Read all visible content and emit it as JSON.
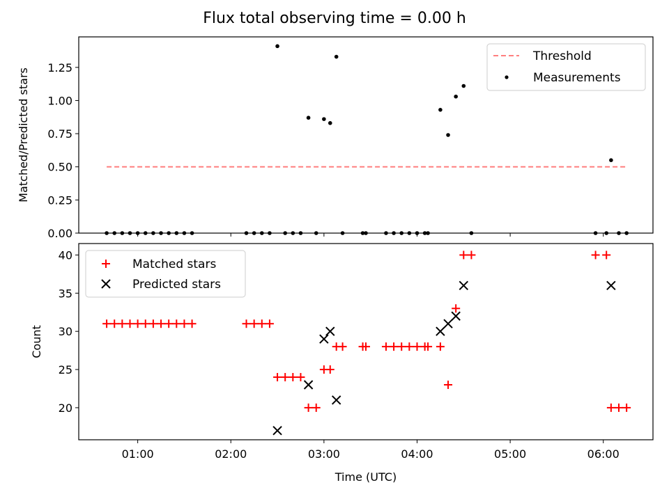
{
  "title": "Flux total observing time = 0.00 h",
  "chart_data": [
    {
      "type": "scatter",
      "ylabel": "Matched/Predicted stars",
      "ylim": [
        0,
        1.48
      ],
      "yticks": [
        "0.00",
        "0.25",
        "0.50",
        "0.75",
        "1.00",
        "1.25"
      ],
      "grid": false,
      "legend_position": "top-right",
      "threshold": {
        "name": "Threshold",
        "y": 0.5,
        "x_range": [
          "00:40",
          "06:15"
        ],
        "color": "#ff7f7f"
      },
      "measurements": {
        "name": "Measurements",
        "color": "#000000",
        "points": [
          [
            "00:40",
            0
          ],
          [
            "00:45",
            0
          ],
          [
            "00:50",
            0
          ],
          [
            "00:55",
            0
          ],
          [
            "01:00",
            0
          ],
          [
            "01:05",
            0
          ],
          [
            "01:10",
            0
          ],
          [
            "01:15",
            0
          ],
          [
            "01:20",
            0
          ],
          [
            "01:25",
            0
          ],
          [
            "01:30",
            0
          ],
          [
            "01:35",
            0
          ],
          [
            "02:10",
            0
          ],
          [
            "02:15",
            0
          ],
          [
            "02:20",
            0
          ],
          [
            "02:25",
            0
          ],
          [
            "02:30",
            1.41
          ],
          [
            "02:35",
            0
          ],
          [
            "02:40",
            0
          ],
          [
            "02:45",
            0
          ],
          [
            "02:50",
            0.87
          ],
          [
            "02:55",
            0
          ],
          [
            "03:00",
            0.86
          ],
          [
            "03:04",
            0.83
          ],
          [
            "03:08",
            1.33
          ],
          [
            "03:12",
            0
          ],
          [
            "03:25",
            0
          ],
          [
            "03:27",
            0
          ],
          [
            "03:40",
            0
          ],
          [
            "03:45",
            0
          ],
          [
            "03:50",
            0
          ],
          [
            "03:55",
            0
          ],
          [
            "04:00",
            0
          ],
          [
            "04:05",
            0
          ],
          [
            "04:07",
            0
          ],
          [
            "04:15",
            0.93
          ],
          [
            "04:20",
            0.74
          ],
          [
            "04:25",
            1.03
          ],
          [
            "04:30",
            1.11
          ],
          [
            "04:35",
            0
          ],
          [
            "05:55",
            0
          ],
          [
            "06:02",
            0
          ],
          [
            "06:05",
            0.55
          ],
          [
            "06:10",
            0
          ],
          [
            "06:15",
            0
          ]
        ]
      }
    },
    {
      "type": "scatter",
      "xlabel": "Time (UTC)",
      "ylabel": "Count",
      "ylim": [
        15.8,
        41.5
      ],
      "yticks": [
        "20",
        "25",
        "30",
        "35",
        "40"
      ],
      "xticks": [
        "01:00",
        "02:00",
        "03:00",
        "04:00",
        "05:00",
        "06:00"
      ],
      "xlim": [
        "00:22",
        "06:32"
      ],
      "grid": false,
      "legend_position": "top-left",
      "series": [
        {
          "name": "Matched stars",
          "marker": "+",
          "color": "#ff0000",
          "points": [
            [
              "00:40",
              31
            ],
            [
              "00:45",
              31
            ],
            [
              "00:50",
              31
            ],
            [
              "00:55",
              31
            ],
            [
              "01:00",
              31
            ],
            [
              "01:05",
              31
            ],
            [
              "01:10",
              31
            ],
            [
              "01:15",
              31
            ],
            [
              "01:20",
              31
            ],
            [
              "01:25",
              31
            ],
            [
              "01:30",
              31
            ],
            [
              "01:35",
              31
            ],
            [
              "02:10",
              31
            ],
            [
              "02:15",
              31
            ],
            [
              "02:20",
              31
            ],
            [
              "02:25",
              31
            ],
            [
              "02:30",
              24
            ],
            [
              "02:35",
              24
            ],
            [
              "02:40",
              24
            ],
            [
              "02:45",
              24
            ],
            [
              "02:50",
              20
            ],
            [
              "02:55",
              20
            ],
            [
              "03:00",
              25
            ],
            [
              "03:04",
              25
            ],
            [
              "03:08",
              28
            ],
            [
              "03:12",
              28
            ],
            [
              "03:25",
              28
            ],
            [
              "03:27",
              28
            ],
            [
              "03:40",
              28
            ],
            [
              "03:45",
              28
            ],
            [
              "03:50",
              28
            ],
            [
              "03:55",
              28
            ],
            [
              "04:00",
              28
            ],
            [
              "04:05",
              28
            ],
            [
              "04:07",
              28
            ],
            [
              "04:15",
              28
            ],
            [
              "04:20",
              23
            ],
            [
              "04:25",
              33
            ],
            [
              "04:30",
              40
            ],
            [
              "04:35",
              40
            ],
            [
              "05:55",
              40
            ],
            [
              "06:02",
              40
            ],
            [
              "06:05",
              20
            ],
            [
              "06:10",
              20
            ],
            [
              "06:15",
              20
            ]
          ]
        },
        {
          "name": "Predicted stars",
          "marker": "x",
          "color": "#000000",
          "points": [
            [
              "02:30",
              17
            ],
            [
              "02:50",
              23
            ],
            [
              "03:00",
              29
            ],
            [
              "03:04",
              30
            ],
            [
              "03:08",
              21
            ],
            [
              "04:15",
              30
            ],
            [
              "04:20",
              31
            ],
            [
              "04:25",
              32
            ],
            [
              "04:30",
              36
            ],
            [
              "06:05",
              36
            ]
          ]
        }
      ]
    }
  ]
}
